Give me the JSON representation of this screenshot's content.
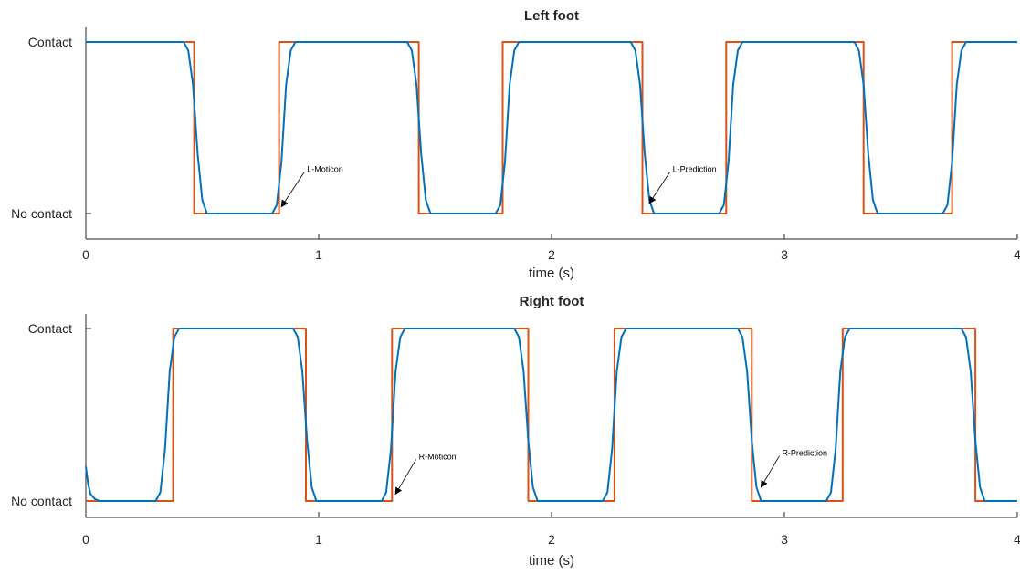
{
  "colors": {
    "prediction": "#0072BD",
    "moticon": "#D95319",
    "axis": "#262626"
  },
  "chart_data": [
    {
      "type": "line",
      "title": "Left foot",
      "xlabel": "time (s)",
      "ylabel": "",
      "xlim": [
        0,
        4
      ],
      "ylim": [
        0,
        1
      ],
      "xticks": [
        0,
        1,
        2,
        3,
        4
      ],
      "xtick_labels": [
        "0",
        "1",
        "2",
        "3",
        "4"
      ],
      "yticks": [
        0,
        1
      ],
      "ytick_labels": [
        "No contact",
        "Contact"
      ],
      "series": [
        {
          "key": "moticon",
          "x": [
            0,
            0.465,
            0.465,
            0.83,
            0.83,
            1.43,
            1.43,
            1.79,
            1.79,
            2.39,
            2.39,
            2.75,
            2.75,
            3.34,
            3.34,
            3.72,
            3.72,
            4.0
          ],
          "y": [
            1,
            1,
            0,
            0,
            1,
            1,
            0,
            0,
            1,
            1,
            0,
            0,
            1,
            1,
            0,
            0,
            1,
            1
          ]
        },
        {
          "key": "prediction",
          "x": [
            0,
            0.42,
            0.44,
            0.46,
            0.48,
            0.5,
            0.52,
            0.8,
            0.82,
            0.84,
            0.86,
            0.88,
            0.9,
            1.38,
            1.4,
            1.42,
            1.44,
            1.46,
            1.48,
            1.76,
            1.78,
            1.8,
            1.82,
            1.84,
            1.86,
            2.34,
            2.36,
            2.38,
            2.4,
            2.42,
            2.44,
            2.72,
            2.74,
            2.76,
            2.78,
            2.8,
            2.82,
            3.3,
            3.32,
            3.34,
            3.36,
            3.38,
            3.4,
            3.68,
            3.7,
            3.72,
            3.74,
            3.76,
            3.78,
            4.0
          ],
          "y": [
            1,
            1,
            0.95,
            0.75,
            0.35,
            0.08,
            0,
            0,
            0.05,
            0.3,
            0.75,
            0.95,
            1,
            1,
            0.95,
            0.75,
            0.35,
            0.08,
            0,
            0,
            0.05,
            0.3,
            0.75,
            0.95,
            1,
            1,
            0.95,
            0.75,
            0.35,
            0.08,
            0,
            0,
            0.05,
            0.3,
            0.75,
            0.95,
            1,
            1,
            0.95,
            0.75,
            0.35,
            0.08,
            0,
            0,
            0.05,
            0.3,
            0.75,
            0.95,
            1,
            1
          ]
        }
      ],
      "annotations": [
        {
          "text": "L-Moticon",
          "x": 0.84,
          "y": 0.04,
          "tx": 0.95,
          "ty": 0.22
        },
        {
          "text": "L-Prediction",
          "x": 2.42,
          "y": 0.06,
          "tx": 2.52,
          "ty": 0.22
        }
      ]
    },
    {
      "type": "line",
      "title": "Right foot",
      "xlabel": "time (s)",
      "ylabel": "",
      "xlim": [
        0,
        4
      ],
      "ylim": [
        0,
        1
      ],
      "xticks": [
        0,
        1,
        2,
        3,
        4
      ],
      "xtick_labels": [
        "0",
        "1",
        "2",
        "3",
        "4"
      ],
      "yticks": [
        0,
        1
      ],
      "ytick_labels": [
        "No contact",
        "Contact"
      ],
      "series": [
        {
          "key": "moticon",
          "x": [
            0,
            0.375,
            0.375,
            0.945,
            0.945,
            1.315,
            1.315,
            1.9,
            1.9,
            2.27,
            2.27,
            2.86,
            2.86,
            3.25,
            3.25,
            3.82,
            3.82,
            4.0
          ],
          "y": [
            0,
            0,
            1,
            1,
            0,
            0,
            1,
            1,
            0,
            0,
            1,
            1,
            0,
            0,
            1,
            1,
            0,
            0
          ]
        },
        {
          "key": "prediction",
          "x": [
            0,
            0.01,
            0.02,
            0.04,
            0.06,
            0.3,
            0.32,
            0.34,
            0.36,
            0.38,
            0.4,
            0.89,
            0.91,
            0.93,
            0.95,
            0.97,
            0.99,
            1.27,
            1.29,
            1.31,
            1.33,
            1.35,
            1.37,
            1.84,
            1.86,
            1.88,
            1.9,
            1.92,
            1.94,
            2.22,
            2.24,
            2.26,
            2.28,
            2.3,
            2.32,
            2.8,
            2.82,
            2.84,
            2.86,
            2.88,
            2.9,
            3.18,
            3.2,
            3.22,
            3.24,
            3.26,
            3.28,
            3.76,
            3.78,
            3.8,
            3.82,
            3.84,
            3.86,
            4.0
          ],
          "y": [
            0.2,
            0.1,
            0.04,
            0.01,
            0,
            0,
            0.05,
            0.3,
            0.75,
            0.95,
            1,
            1,
            0.95,
            0.75,
            0.35,
            0.08,
            0,
            0,
            0.05,
            0.3,
            0.75,
            0.95,
            1,
            1,
            0.95,
            0.75,
            0.35,
            0.08,
            0,
            0,
            0.05,
            0.3,
            0.75,
            0.95,
            1,
            1,
            0.95,
            0.75,
            0.35,
            0.08,
            0,
            0,
            0.05,
            0.3,
            0.75,
            0.95,
            1,
            1,
            0.95,
            0.75,
            0.35,
            0.08,
            0,
            0
          ]
        }
      ],
      "annotations": [
        {
          "text": "R-Moticon",
          "x": 1.33,
          "y": 0.04,
          "tx": 1.43,
          "ty": 0.22
        },
        {
          "text": "R-Prediction",
          "x": 2.9,
          "y": 0.08,
          "tx": 2.99,
          "ty": 0.24
        }
      ]
    }
  ]
}
